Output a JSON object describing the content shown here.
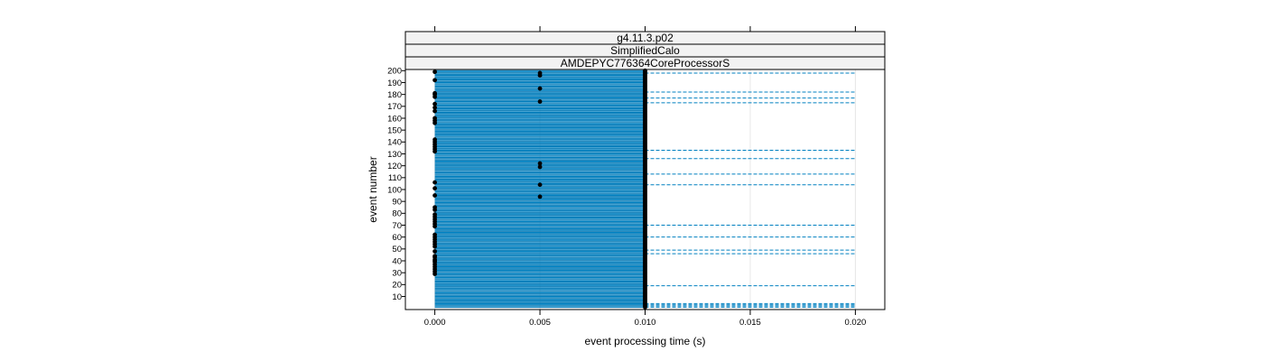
{
  "chart_data": {
    "type": "scatter",
    "panel_strips": [
      "g4.11.3.p02",
      "SimplifiedCalo",
      "AMDEPYC776364CoreProcessorS"
    ],
    "xlabel": "event processing time (s)",
    "ylabel": "event number",
    "xlim": [
      -0.0014,
      0.0214
    ],
    "ylim": [
      -1,
      201
    ],
    "x_ticks": [
      0.0,
      0.005,
      0.01,
      0.015,
      0.02
    ],
    "x_tick_labels": [
      "0.000",
      "0.005",
      "0.010",
      "0.015",
      "0.020"
    ],
    "y_ticks": [
      10,
      20,
      30,
      40,
      50,
      60,
      70,
      80,
      90,
      100,
      110,
      120,
      130,
      140,
      150,
      160,
      170,
      180,
      190,
      200
    ],
    "y_tick_labels": [
      "10",
      "20",
      "30",
      "40",
      "50",
      "60",
      "70",
      "80",
      "90",
      "100",
      "110",
      "120",
      "130",
      "140",
      "150",
      "160",
      "170",
      "180",
      "190",
      "200"
    ],
    "grid": "vertical",
    "n_events": 200,
    "interval_low": 0.0,
    "interval_high": 0.01,
    "interval_extended_high": 0.02,
    "extended_events": [
      1,
      2,
      3,
      4,
      19,
      46,
      49,
      60,
      70,
      104,
      113,
      126,
      133,
      173,
      177,
      182,
      198
    ],
    "points_at_0_005": [
      94,
      104,
      119,
      122,
      174,
      185,
      196,
      198
    ],
    "points_at_0_000": [
      29,
      31,
      33,
      35,
      37,
      39,
      40,
      41,
      43,
      44,
      48,
      52,
      54,
      56,
      58,
      60,
      62,
      69,
      71,
      73,
      75,
      77,
      79,
      83,
      85,
      95,
      101,
      106,
      132,
      134,
      136,
      138,
      140,
      142,
      156,
      158,
      160,
      166,
      169,
      172,
      178,
      180,
      181,
      192,
      199
    ],
    "colors": {
      "interval": "#0080c0",
      "interval_edge": "#004a7a",
      "point": "#000000",
      "grid": "#e6e6e6"
    }
  }
}
